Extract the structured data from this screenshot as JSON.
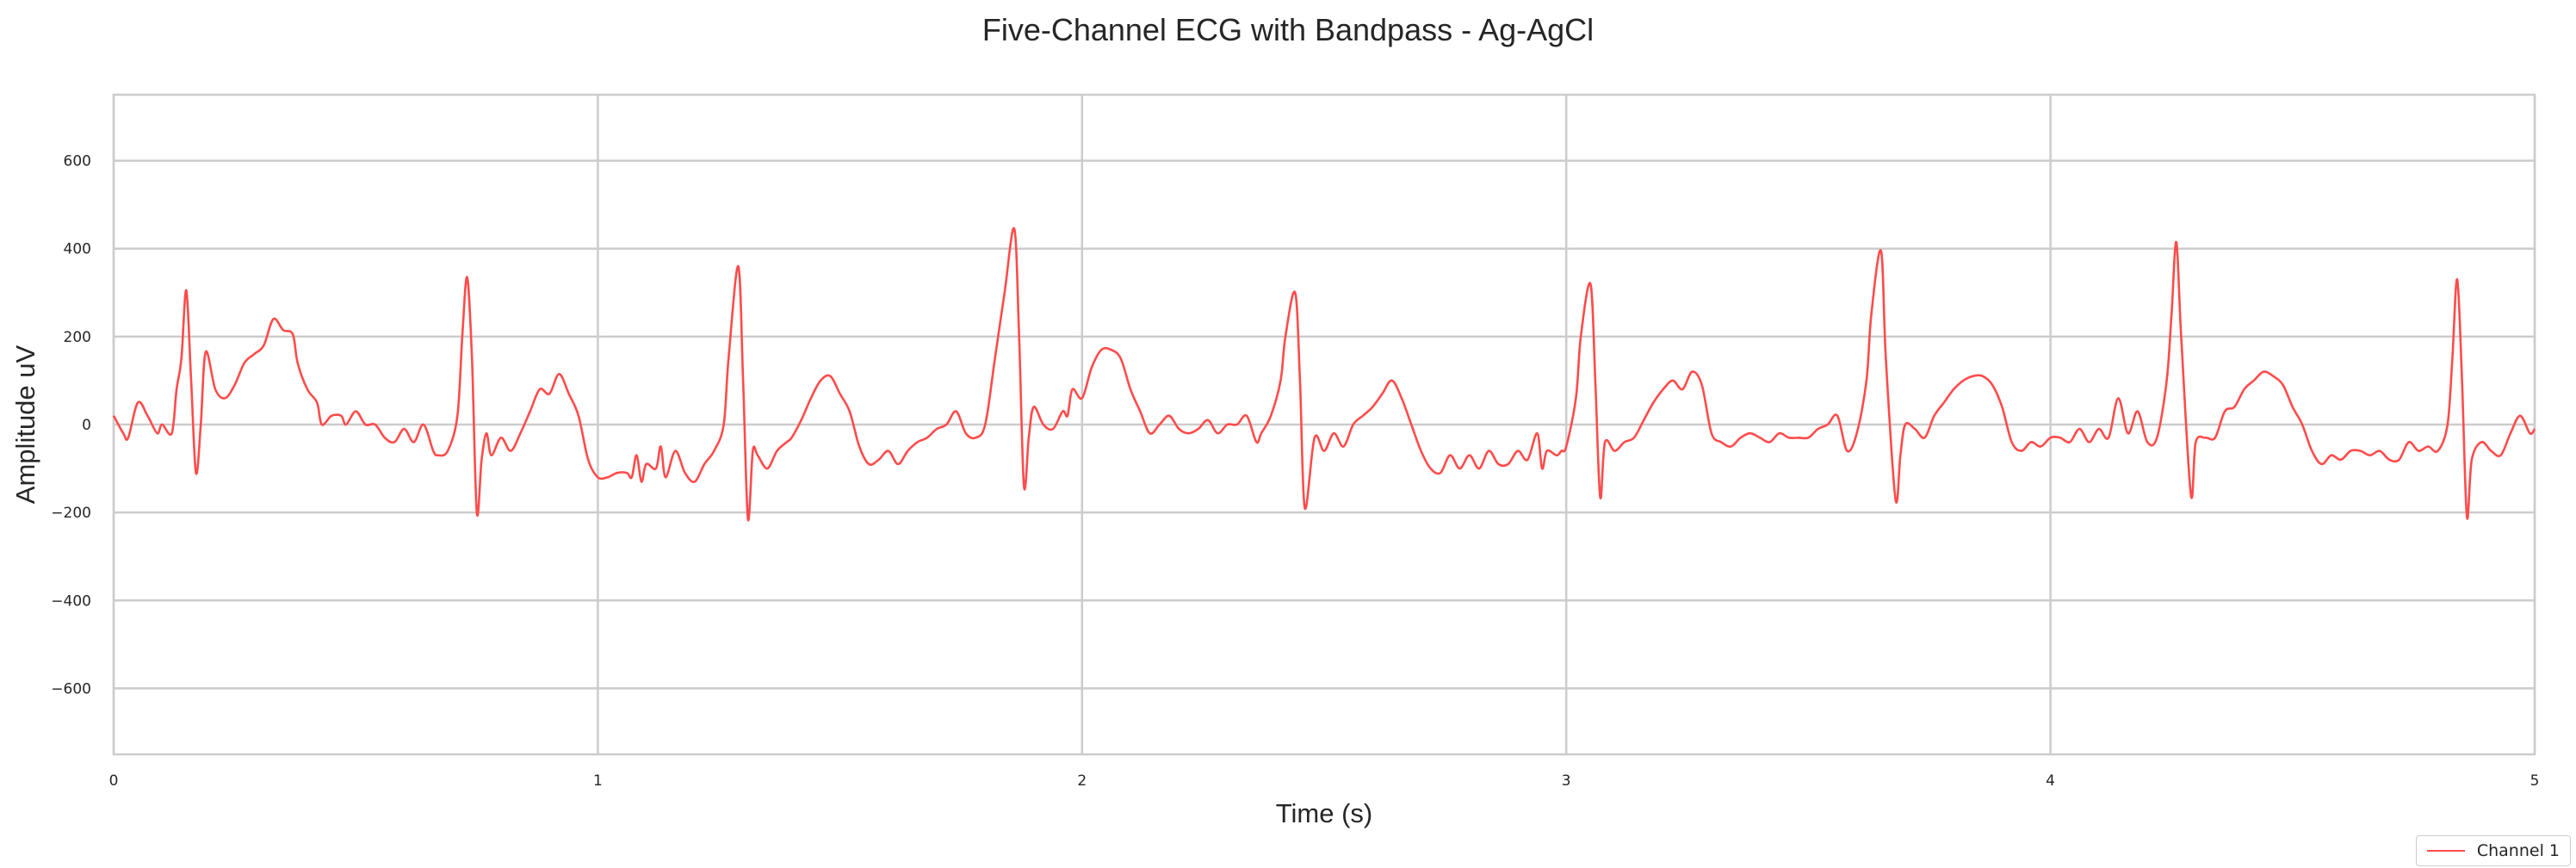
{
  "chart_data": {
    "type": "line",
    "title": "Five-Channel ECG with Bandpass - Ag-AgCl",
    "xlabel": "Time (s)",
    "ylabel": "Amplitude uV",
    "xlim": [
      0,
      5
    ],
    "ylim": [
      -750,
      750
    ],
    "x_ticks": [
      0,
      1,
      2,
      3,
      4,
      5
    ],
    "y_ticks": [
      -600,
      -400,
      -200,
      0,
      200,
      400,
      600
    ],
    "x_tick_labels": [
      "0",
      "1",
      "2",
      "3",
      "4",
      "5"
    ],
    "y_tick_labels": [
      "−600",
      "−400",
      "−200",
      "0",
      "200",
      "400",
      "600"
    ],
    "grid": true,
    "legend_position": "lower-right outside",
    "series": [
      {
        "name": "Channel 1",
        "color": "#ff4b4b",
        "points": [
          [
            0.0,
            20
          ],
          [
            0.02,
            -20
          ],
          [
            0.03,
            -30
          ],
          [
            0.05,
            50
          ],
          [
            0.07,
            20
          ],
          [
            0.09,
            -20
          ],
          [
            0.1,
            0
          ],
          [
            0.12,
            -20
          ],
          [
            0.13,
            80
          ],
          [
            0.14,
            150
          ],
          [
            0.15,
            305
          ],
          [
            0.16,
            100
          ],
          [
            0.17,
            -110
          ],
          [
            0.18,
            0
          ],
          [
            0.19,
            165
          ],
          [
            0.21,
            80
          ],
          [
            0.23,
            60
          ],
          [
            0.25,
            90
          ],
          [
            0.27,
            140
          ],
          [
            0.29,
            160
          ],
          [
            0.31,
            180
          ],
          [
            0.33,
            240
          ],
          [
            0.35,
            215
          ],
          [
            0.37,
            205
          ],
          [
            0.38,
            140
          ],
          [
            0.4,
            80
          ],
          [
            0.42,
            50
          ],
          [
            0.43,
            0
          ],
          [
            0.45,
            20
          ],
          [
            0.47,
            20
          ],
          [
            0.48,
            0
          ],
          [
            0.5,
            30
          ],
          [
            0.52,
            0
          ],
          [
            0.54,
            0
          ],
          [
            0.56,
            -30
          ],
          [
            0.58,
            -40
          ],
          [
            0.6,
            -10
          ],
          [
            0.62,
            -40
          ],
          [
            0.64,
            0
          ],
          [
            0.66,
            -60
          ],
          [
            0.67,
            -70
          ],
          [
            0.69,
            -60
          ],
          [
            0.71,
            20
          ],
          [
            0.72,
            200
          ],
          [
            0.73,
            335
          ],
          [
            0.74,
            150
          ],
          [
            0.75,
            -200
          ],
          [
            0.76,
            -80
          ],
          [
            0.77,
            -20
          ],
          [
            0.78,
            -70
          ],
          [
            0.8,
            -30
          ],
          [
            0.82,
            -60
          ],
          [
            0.84,
            -20
          ],
          [
            0.86,
            30
          ],
          [
            0.88,
            80
          ],
          [
            0.9,
            70
          ],
          [
            0.92,
            115
          ],
          [
            0.94,
            70
          ],
          [
            0.96,
            20
          ],
          [
            0.98,
            -80
          ],
          [
            1.0,
            -120
          ],
          [
            1.02,
            -120
          ],
          [
            1.04,
            -110
          ],
          [
            1.06,
            -110
          ],
          [
            1.07,
            -120
          ],
          [
            1.08,
            -70
          ],
          [
            1.09,
            -130
          ],
          [
            1.1,
            -90
          ],
          [
            1.12,
            -100
          ],
          [
            1.13,
            -50
          ],
          [
            1.14,
            -120
          ],
          [
            1.16,
            -60
          ],
          [
            1.18,
            -110
          ],
          [
            1.2,
            -130
          ],
          [
            1.22,
            -90
          ],
          [
            1.24,
            -60
          ],
          [
            1.26,
            0
          ],
          [
            1.27,
            150
          ],
          [
            1.29,
            360
          ],
          [
            1.3,
            100
          ],
          [
            1.31,
            -215
          ],
          [
            1.32,
            -60
          ],
          [
            1.33,
            -70
          ],
          [
            1.35,
            -100
          ],
          [
            1.37,
            -60
          ],
          [
            1.39,
            -40
          ],
          [
            1.4,
            -30
          ],
          [
            1.42,
            10
          ],
          [
            1.44,
            60
          ],
          [
            1.46,
            100
          ],
          [
            1.48,
            110
          ],
          [
            1.5,
            70
          ],
          [
            1.52,
            30
          ],
          [
            1.54,
            -50
          ],
          [
            1.56,
            -90
          ],
          [
            1.58,
            -80
          ],
          [
            1.6,
            -60
          ],
          [
            1.62,
            -90
          ],
          [
            1.64,
            -60
          ],
          [
            1.66,
            -40
          ],
          [
            1.68,
            -30
          ],
          [
            1.7,
            -10
          ],
          [
            1.72,
            0
          ],
          [
            1.74,
            30
          ],
          [
            1.76,
            -20
          ],
          [
            1.78,
            -30
          ],
          [
            1.8,
            0
          ],
          [
            1.82,
            150
          ],
          [
            1.84,
            300
          ],
          [
            1.86,
            445
          ],
          [
            1.87,
            200
          ],
          [
            1.88,
            -140
          ],
          [
            1.89,
            -30
          ],
          [
            1.9,
            40
          ],
          [
            1.92,
            0
          ],
          [
            1.94,
            -10
          ],
          [
            1.96,
            30
          ],
          [
            1.97,
            20
          ],
          [
            1.98,
            80
          ],
          [
            2.0,
            60
          ],
          [
            2.02,
            130
          ],
          [
            2.04,
            170
          ],
          [
            2.06,
            170
          ],
          [
            2.08,
            150
          ],
          [
            2.1,
            80
          ],
          [
            2.12,
            30
          ],
          [
            2.14,
            -20
          ],
          [
            2.16,
            0
          ],
          [
            2.18,
            20
          ],
          [
            2.2,
            -10
          ],
          [
            2.22,
            -20
          ],
          [
            2.24,
            -10
          ],
          [
            2.26,
            10
          ],
          [
            2.28,
            -20
          ],
          [
            2.3,
            0
          ],
          [
            2.32,
            0
          ],
          [
            2.34,
            20
          ],
          [
            2.36,
            -40
          ],
          [
            2.37,
            -20
          ],
          [
            2.39,
            20
          ],
          [
            2.41,
            100
          ],
          [
            2.42,
            200
          ],
          [
            2.44,
            300
          ],
          [
            2.45,
            100
          ],
          [
            2.46,
            -190
          ],
          [
            2.48,
            -30
          ],
          [
            2.5,
            -60
          ],
          [
            2.52,
            -20
          ],
          [
            2.54,
            -50
          ],
          [
            2.56,
            0
          ],
          [
            2.58,
            20
          ],
          [
            2.6,
            40
          ],
          [
            2.62,
            70
          ],
          [
            2.64,
            100
          ],
          [
            2.66,
            60
          ],
          [
            2.68,
            0
          ],
          [
            2.7,
            -60
          ],
          [
            2.72,
            -100
          ],
          [
            2.74,
            -110
          ],
          [
            2.76,
            -70
          ],
          [
            2.78,
            -100
          ],
          [
            2.8,
            -70
          ],
          [
            2.82,
            -100
          ],
          [
            2.84,
            -60
          ],
          [
            2.86,
            -90
          ],
          [
            2.88,
            -90
          ],
          [
            2.9,
            -60
          ],
          [
            2.92,
            -80
          ],
          [
            2.94,
            -20
          ],
          [
            2.95,
            -100
          ],
          [
            2.96,
            -60
          ],
          [
            2.98,
            -70
          ],
          [
            2.99,
            -60
          ],
          [
            3.0,
            -50
          ],
          [
            3.02,
            60
          ],
          [
            3.03,
            200
          ],
          [
            3.05,
            320
          ],
          [
            3.06,
            100
          ],
          [
            3.07,
            -165
          ],
          [
            3.08,
            -40
          ],
          [
            3.1,
            -60
          ],
          [
            3.12,
            -40
          ],
          [
            3.14,
            -30
          ],
          [
            3.16,
            10
          ],
          [
            3.18,
            50
          ],
          [
            3.2,
            80
          ],
          [
            3.22,
            100
          ],
          [
            3.24,
            80
          ],
          [
            3.26,
            120
          ],
          [
            3.28,
            90
          ],
          [
            3.3,
            -20
          ],
          [
            3.32,
            -40
          ],
          [
            3.34,
            -50
          ],
          [
            3.36,
            -30
          ],
          [
            3.38,
            -20
          ],
          [
            3.4,
            -30
          ],
          [
            3.42,
            -40
          ],
          [
            3.44,
            -20
          ],
          [
            3.46,
            -30
          ],
          [
            3.48,
            -30
          ],
          [
            3.5,
            -30
          ],
          [
            3.52,
            -10
          ],
          [
            3.54,
            0
          ],
          [
            3.56,
            20
          ],
          [
            3.58,
            -60
          ],
          [
            3.6,
            -20
          ],
          [
            3.62,
            100
          ],
          [
            3.63,
            250
          ],
          [
            3.65,
            395
          ],
          [
            3.66,
            150
          ],
          [
            3.68,
            -170
          ],
          [
            3.69,
            -70
          ],
          [
            3.7,
            0
          ],
          [
            3.72,
            -10
          ],
          [
            3.74,
            -30
          ],
          [
            3.76,
            20
          ],
          [
            3.78,
            50
          ],
          [
            3.8,
            80
          ],
          [
            3.82,
            100
          ],
          [
            3.84,
            110
          ],
          [
            3.86,
            110
          ],
          [
            3.88,
            90
          ],
          [
            3.9,
            40
          ],
          [
            3.92,
            -40
          ],
          [
            3.94,
            -60
          ],
          [
            3.96,
            -40
          ],
          [
            3.98,
            -50
          ],
          [
            4.0,
            -30
          ],
          [
            4.02,
            -30
          ],
          [
            4.04,
            -40
          ],
          [
            4.06,
            -10
          ],
          [
            4.08,
            -40
          ],
          [
            4.1,
            -10
          ],
          [
            4.12,
            -30
          ],
          [
            4.14,
            60
          ],
          [
            4.16,
            -20
          ],
          [
            4.18,
            30
          ],
          [
            4.2,
            -40
          ],
          [
            4.22,
            -30
          ],
          [
            4.24,
            100
          ],
          [
            4.25,
            250
          ],
          [
            4.26,
            415
          ],
          [
            4.27,
            200
          ],
          [
            4.29,
            -160
          ],
          [
            4.3,
            -40
          ],
          [
            4.32,
            -30
          ],
          [
            4.34,
            -30
          ],
          [
            4.36,
            30
          ],
          [
            4.38,
            40
          ],
          [
            4.4,
            80
          ],
          [
            4.42,
            100
          ],
          [
            4.44,
            120
          ],
          [
            4.46,
            110
          ],
          [
            4.48,
            90
          ],
          [
            4.5,
            40
          ],
          [
            4.52,
            0
          ],
          [
            4.54,
            -60
          ],
          [
            4.56,
            -90
          ],
          [
            4.58,
            -70
          ],
          [
            4.6,
            -80
          ],
          [
            4.62,
            -60
          ],
          [
            4.64,
            -60
          ],
          [
            4.66,
            -70
          ],
          [
            4.68,
            -60
          ],
          [
            4.7,
            -80
          ],
          [
            4.72,
            -80
          ],
          [
            4.74,
            -40
          ],
          [
            4.76,
            -60
          ],
          [
            4.78,
            -50
          ],
          [
            4.8,
            -60
          ],
          [
            4.82,
            0
          ],
          [
            4.83,
            150
          ],
          [
            4.84,
            330
          ],
          [
            4.85,
            100
          ],
          [
            4.86,
            -210
          ],
          [
            4.87,
            -80
          ],
          [
            4.89,
            -40
          ],
          [
            4.91,
            -60
          ],
          [
            4.93,
            -70
          ],
          [
            4.95,
            -20
          ],
          [
            4.97,
            20
          ],
          [
            4.99,
            -20
          ],
          [
            5.0,
            -10
          ]
        ]
      }
    ]
  }
}
